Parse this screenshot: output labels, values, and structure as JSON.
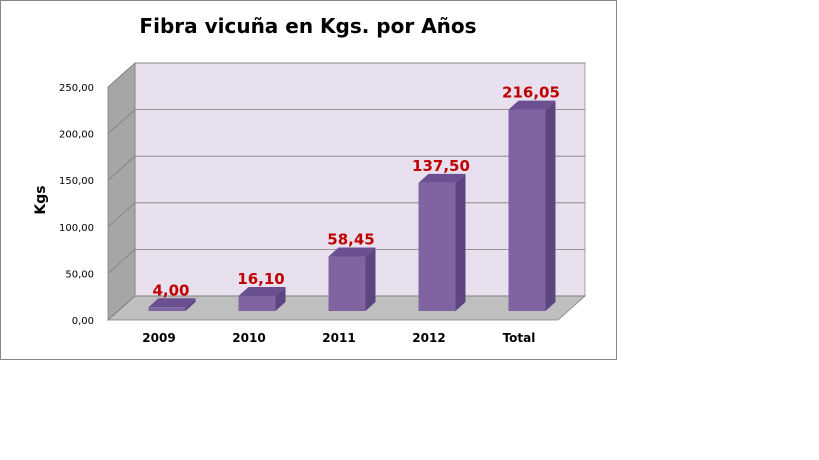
{
  "chart_data": {
    "type": "bar",
    "title": "Fibra vicuña en Kgs. por Años",
    "xlabel": "",
    "ylabel": "Kgs",
    "categories": [
      "2009",
      "2010",
      "2011",
      "2012",
      "Total"
    ],
    "values": [
      4.0,
      16.1,
      58.45,
      137.5,
      216.05
    ],
    "value_labels": [
      "4,00",
      "16,10",
      "58,45",
      "137,50",
      "216,05"
    ],
    "ylim": [
      0,
      250
    ],
    "yticks": [
      0,
      50,
      100,
      150,
      200,
      250
    ],
    "ytick_labels": [
      "0,00",
      "50,00",
      "100,00",
      "150,00",
      "200,00",
      "250,00"
    ],
    "grid": true,
    "legend": "none",
    "colors": {
      "bar_front": "#8064a2",
      "bar_side": "#5d4680",
      "bar_top": "#6a4f91",
      "wall_back": "#e8e0ee",
      "wall_side": "#a6a6a6",
      "floor": "#bfbfbf",
      "value_label": "#c00000"
    }
  }
}
